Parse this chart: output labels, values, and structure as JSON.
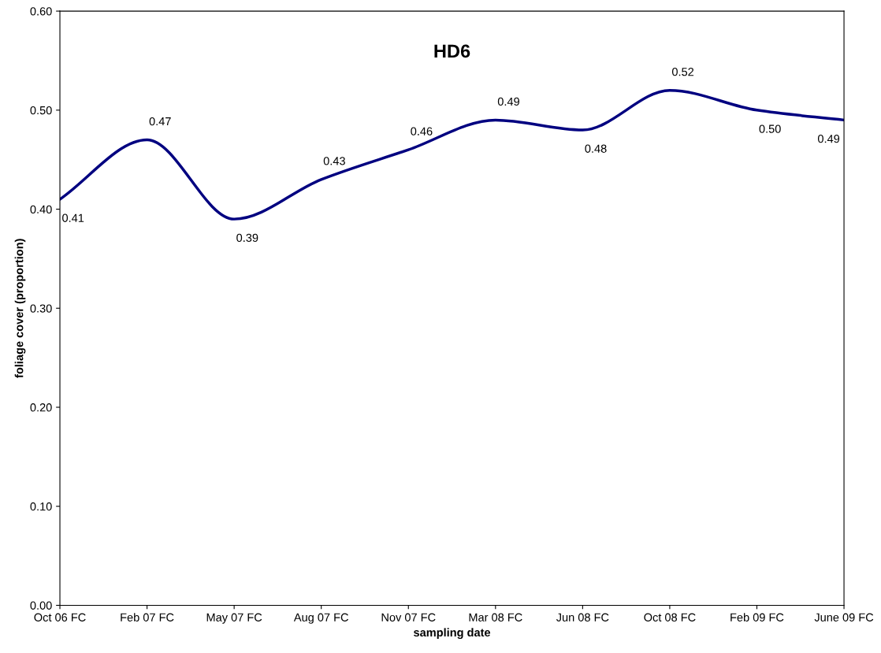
{
  "chart_data": {
    "type": "line",
    "title": "HD6",
    "xlabel": "sampling date",
    "ylabel": "foliage cover (proportion)",
    "categories": [
      "Oct 06 FC",
      "Feb 07 FC",
      "May 07 FC",
      "Aug 07 FC",
      "Nov 07 FC",
      "Mar 08 FC",
      "Jun 08 FC",
      "Oct 08 FC",
      "Feb 09 FC",
      "June 09 FC"
    ],
    "series": [
      {
        "color": "#000080",
        "values": [
          0.41,
          0.47,
          0.39,
          0.43,
          0.46,
          0.49,
          0.48,
          0.52,
          0.5,
          0.49
        ],
        "value_labels": [
          "0.41",
          "0.47",
          "0.39",
          "0.43",
          "0.46",
          "0.49",
          "0.48",
          "0.52",
          "0.50",
          "0.49"
        ]
      }
    ],
    "ylim": [
      0,
      0.6
    ],
    "yticks": [
      {
        "value": 0,
        "label": "0.00"
      },
      {
        "value": 0.1,
        "label": "0.10"
      },
      {
        "value": 0.2,
        "label": "0.20"
      },
      {
        "value": 0.3,
        "label": "0.30"
      },
      {
        "value": 0.4,
        "label": "0.40"
      },
      {
        "value": 0.5,
        "label": "0.50"
      },
      {
        "value": 0.6,
        "label": "0.60"
      }
    ],
    "grid": false,
    "marker": "none",
    "line_style": "solid"
  }
}
